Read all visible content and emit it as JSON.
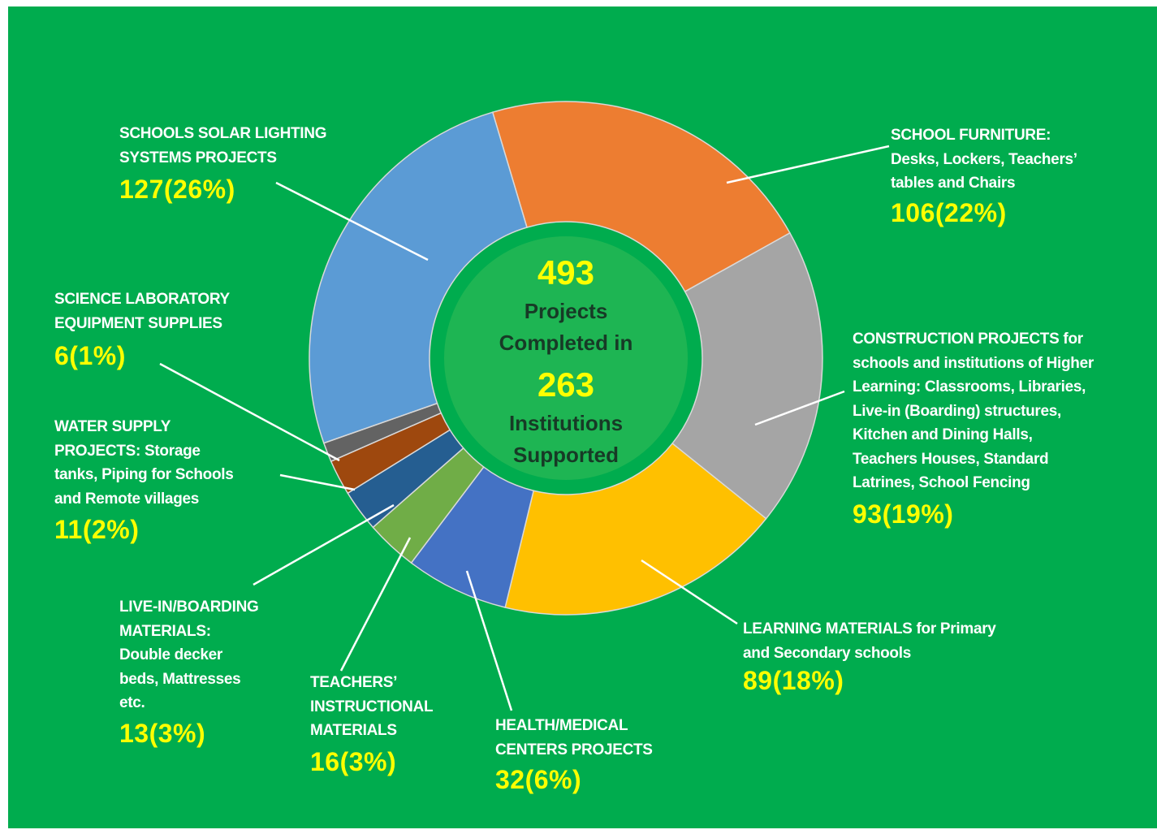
{
  "chart_data": {
    "type": "donut",
    "categories": [
      "SCHOOL FURNITURE:\nDesks, Lockers, Teachers’\ntables and Chairs",
      "CONSTRUCTION PROJECTS for\nschools and institutions of Higher\nLearning: Classrooms, Libraries,\nLive-in (Boarding) structures,\nKitchen and Dining Halls,\nTeachers Houses, Standard\nLatrines, School Fencing",
      "LEARNING MATERIALS for Primary\nand Secondary schools",
      "HEALTH/MEDICAL\nCENTERS PROJECTS",
      "TEACHERS’\nINSTRUCTIONAL\nMATERIALS",
      "LIVE-IN/BOARDING\nMATERIALS:\nDouble decker\nbeds, Mattresses\netc.",
      "WATER SUPPLY\nPROJECTS: Storage\ntanks, Piping for Schools\nand Remote villages",
      "SCIENCE LABORATORY\nEQUIPMENT SUPPLIES",
      "SCHOOLS SOLAR LIGHTING\nSYSTEMS PROJECTS"
    ],
    "values": [
      106,
      93,
      89,
      32,
      16,
      13,
      11,
      6,
      127
    ],
    "value_labels": [
      "106(22%)",
      "93(19%)",
      "89(18%)",
      "32(6%)",
      "16(3%)",
      "13(3%)",
      "11(2%)",
      "6(1%)",
      "127(26%)"
    ],
    "colors": [
      "#ed7d31",
      "#a5a5a5",
      "#ffc000",
      "#4472c4",
      "#70ad47",
      "#255e91",
      "#9e480e",
      "#636363",
      "#5b9bd5"
    ],
    "center": {
      "total": 493,
      "total_text": "Projects\nCompleted in",
      "institutions": 263,
      "institutions_text": "Institutions\nSupported"
    }
  }
}
